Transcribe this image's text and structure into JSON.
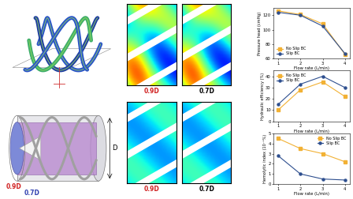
{
  "chart_data": [
    {
      "type": "line",
      "x": [
        1,
        2,
        3,
        4
      ],
      "xlabel": "Flow rate (L/min)",
      "ylabel": "Pressure head (cmHg)",
      "xlim": [
        0.8,
        4.2
      ],
      "xticks": [
        1,
        2,
        3,
        4
      ],
      "ylim": [
        60,
        130
      ],
      "yticks": [
        60,
        80,
        100,
        120
      ],
      "legend": "lower left",
      "series": [
        {
          "name": "No Slip BC",
          "color": "#f2b134",
          "marker": "square",
          "line_style": "solid",
          "values": [
            126,
            121,
            108,
            66
          ]
        },
        {
          "name": "Slip BC",
          "color": "#2e4f8f",
          "marker": "circle",
          "line_style": "solid",
          "values": [
            124,
            120,
            105,
            67
          ]
        }
      ]
    },
    {
      "type": "line",
      "x": [
        1,
        2,
        3,
        4
      ],
      "xlabel": "Flow rate (L/min)",
      "ylabel": "Hydraulic efficiency (%)",
      "xlim": [
        0.8,
        4.2
      ],
      "xticks": [
        1,
        2,
        3,
        4
      ],
      "ylim": [
        0,
        45
      ],
      "yticks": [
        0,
        10,
        20,
        30,
        40
      ],
      "legend": "upper left",
      "series": [
        {
          "name": "No Slip BC",
          "color": "#f2b134",
          "marker": "square",
          "line_style": "solid",
          "values": [
            10,
            28,
            35,
            22
          ]
        },
        {
          "name": "Slip BC",
          "color": "#2e4f8f",
          "marker": "circle",
          "line_style": "solid",
          "values": [
            15,
            33,
            40,
            30
          ]
        }
      ]
    },
    {
      "type": "line",
      "x": [
        1,
        2,
        3,
        4
      ],
      "xlabel": "Flow rate (L/min)",
      "ylabel": "Hemolytic index (10⁻⁵%)",
      "xlim": [
        0.8,
        4.2
      ],
      "xticks": [
        1,
        2,
        3,
        4
      ],
      "ylim": [
        0,
        5
      ],
      "yticks": [
        0,
        1,
        2,
        3,
        4,
        5
      ],
      "legend": "upper right",
      "series": [
        {
          "name": "No Slip BC",
          "color": "#f2b134",
          "marker": "square",
          "line_style": "solid",
          "values": [
            4.5,
            3.5,
            3.0,
            2.2
          ]
        },
        {
          "name": "Slip BC",
          "color": "#2e4f8f",
          "marker": "circle",
          "line_style": "solid",
          "values": [
            2.8,
            1.0,
            0.5,
            0.4
          ]
        }
      ]
    }
  ],
  "diagram": {
    "contour_labels": [
      "0.9D",
      "0.7D"
    ],
    "cylinder_labels": {
      "outer": "D",
      "inner_large": "0.9D",
      "inner_small": "0.7D"
    }
  }
}
